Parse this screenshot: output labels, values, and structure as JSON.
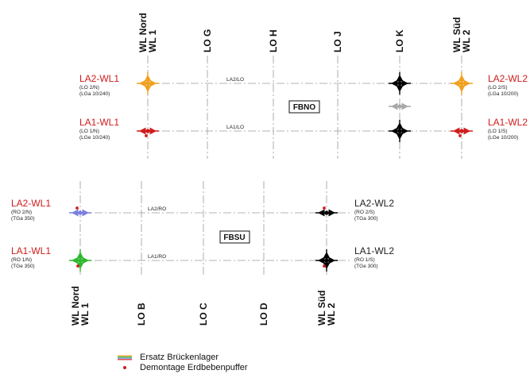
{
  "colors": {
    "red": "#d01c1c",
    "orange": "#f0a020",
    "black": "#000000",
    "gray": "#a8a8a8",
    "blue": "#7a7fe0",
    "green": "#2db82d",
    "dot": "#d01c1c",
    "text_red": "#d01c1c",
    "text_black": "#222222"
  },
  "top": {
    "axes": [
      "WL Nord\nWL 1",
      "LO G",
      "LO H",
      "LO J",
      "LO K",
      "WL Süd\nWL 2"
    ],
    "box_label": "FBNO",
    "lines": [
      {
        "label": "LA2/LO"
      },
      {
        "label": "LA1/LO"
      }
    ],
    "bearings_left": [
      {
        "title": "LA2-WL1",
        "sub1": "(LO 2/N)",
        "sub2": "(LGa 10/240)"
      },
      {
        "title": "LA1-WL1",
        "sub1": "(LO 1/N)",
        "sub2": "(LGe 10/240)"
      }
    ],
    "bearings_right": [
      {
        "title": "LA2-WL2",
        "sub1": "(LO 2/S)",
        "sub2": "(LGa 10/200)"
      },
      {
        "title": "LA1-WL2",
        "sub1": "(LO 1/S)",
        "sub2": "(LGe 10/200)"
      }
    ]
  },
  "bottom": {
    "axes": [
      "WL Nord\nWL 1",
      "LO B",
      "LO C",
      "LO D",
      "WL Süd\nWL 2"
    ],
    "box_label": "FBSU",
    "lines": [
      {
        "label": "LA2/RO"
      },
      {
        "label": "LA1/RO"
      }
    ],
    "bearings_left": [
      {
        "title": "LA2-WL1",
        "sub1": "(RO 2/N)",
        "sub2": "(TGa 350)"
      },
      {
        "title": "LA1-WL1",
        "sub1": "(RO 1/N)",
        "sub2": "(TGe 350)"
      }
    ],
    "bearings_right": [
      {
        "title": "LA2-WL2",
        "sub1": "(RO 2/S)",
        "sub2": "(TGa 300)"
      },
      {
        "title": "LA1-WL2",
        "sub1": "(RO 1/S)",
        "sub2": "(TGe 300)"
      }
    ]
  },
  "legend": {
    "item1": "Ersatz Brückenlager",
    "item2": "Demontage Erdbebenpuffer"
  }
}
